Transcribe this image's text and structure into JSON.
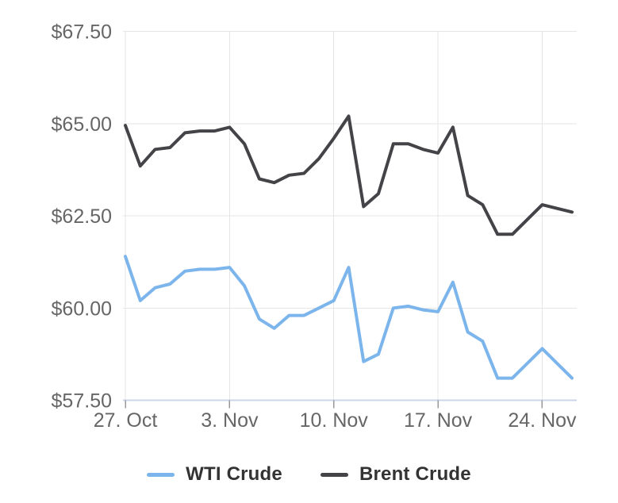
{
  "chart_data": {
    "type": "line",
    "title": "",
    "x_axis": {
      "tick_labels": [
        "27. Oct",
        "3. Nov",
        "10. Nov",
        "17. Nov",
        "24. Nov"
      ],
      "tick_indices": [
        0,
        7,
        14,
        21,
        28
      ],
      "num_points": 31,
      "interval": "daily"
    },
    "y_axis": {
      "tick_labels": [
        "$57.50",
        "$60.00",
        "$62.50",
        "$65.00",
        "$67.50"
      ],
      "tick_values": [
        57.5,
        60.0,
        62.5,
        65.0,
        67.5
      ],
      "range": [
        57.5,
        67.5
      ]
    },
    "series": [
      {
        "name": "WTI Crude",
        "color": "#7cb5ec",
        "values": [
          61.4,
          60.2,
          60.55,
          60.65,
          61.0,
          61.05,
          61.05,
          61.1,
          60.6,
          59.7,
          59.45,
          59.8,
          59.8,
          60.0,
          60.2,
          61.1,
          58.55,
          58.75,
          60.0,
          60.05,
          59.95,
          59.9,
          60.7,
          59.35,
          59.1,
          58.1,
          58.1,
          58.5,
          58.9,
          58.5,
          58.1
        ]
      },
      {
        "name": "Brent Crude",
        "color": "#434348",
        "values": [
          64.95,
          63.85,
          64.3,
          64.35,
          64.75,
          64.8,
          64.8,
          64.9,
          64.45,
          63.5,
          63.4,
          63.6,
          63.65,
          64.05,
          64.6,
          65.2,
          62.75,
          63.1,
          64.45,
          64.45,
          64.3,
          64.2,
          64.9,
          63.05,
          62.8,
          62.0,
          62.0,
          62.4,
          62.8,
          62.7,
          62.6
        ]
      }
    ],
    "grid": true,
    "legend_position": "bottom",
    "styles": {
      "grid_color": "#e6e6e6",
      "axis_line_color": "#ccd6eb",
      "tick_color": "#999999",
      "label_color": "#666666",
      "legend_text_color": "#333333",
      "background": "#ffffff"
    }
  }
}
